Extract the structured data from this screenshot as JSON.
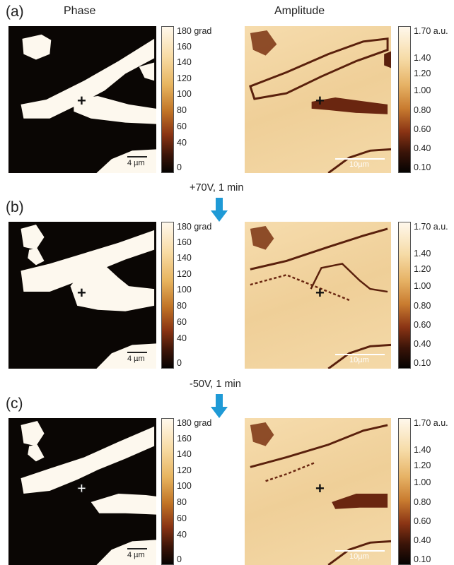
{
  "headers": {
    "phase": "Phase",
    "amplitude": "Amplitude"
  },
  "panels": [
    {
      "label": "(a)",
      "phase_scalebar": "4 µm",
      "amp_scalebar": "10µm"
    },
    {
      "label": "(b)",
      "phase_scalebar": "4 µm",
      "amp_scalebar": "10µm"
    },
    {
      "label": "(c)",
      "phase_scalebar": "4 µm",
      "amp_scalebar": "10µm"
    }
  ],
  "steps": [
    "+70V, 1 min",
    "-50V, 1 min"
  ],
  "phase_colorbar": {
    "top_label": "180 grad",
    "ticks": [
      "160",
      "140",
      "120",
      "100",
      "80",
      "60",
      "40",
      "0"
    ]
  },
  "amp_colorbar": {
    "top_label": "1.70 a.u.",
    "ticks": [
      "1.40",
      "1.20",
      "1.00",
      "0.80",
      "0.60",
      "0.40",
      "0.10"
    ]
  },
  "colors": {
    "phase_dark": "#0a0604",
    "phase_light": "#fdf8ee",
    "amp_light": "#f1d3a1",
    "amp_dark": "#5a200c",
    "arrow": "#1f9ad6"
  },
  "marker_symbol": "+"
}
